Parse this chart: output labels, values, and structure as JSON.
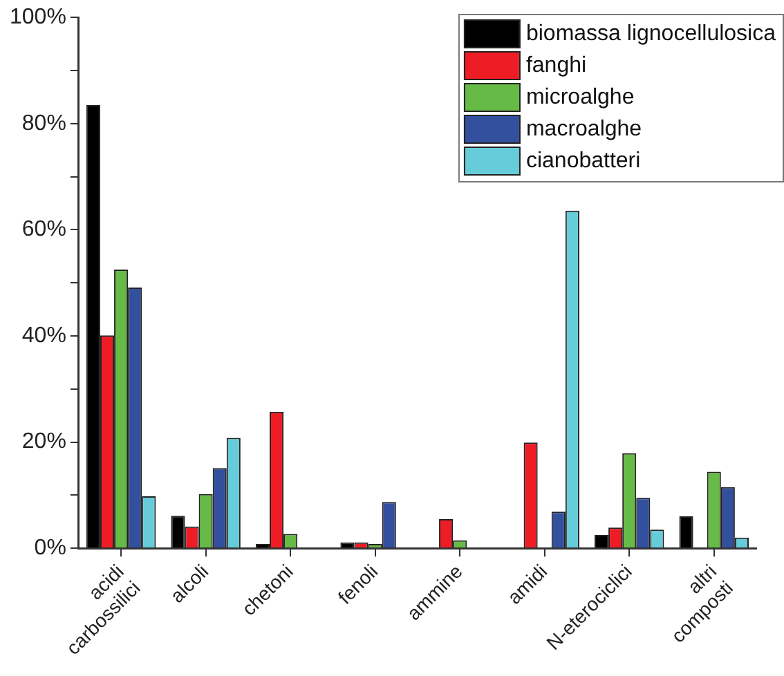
{
  "chart_data": {
    "type": "bar",
    "categories": [
      "acidi carbossilici",
      "alcoli",
      "chetoni",
      "fenoli",
      "ammine",
      "amidi",
      "N-eterociclici",
      "altri composti"
    ],
    "series": [
      {
        "name": "biomassa lignocellulosica",
        "color": "#000000",
        "values": [
          83.5,
          6.1,
          0.8,
          1.1,
          null,
          null,
          2.5,
          6.0
        ]
      },
      {
        "name": "fanghi",
        "color": "#ee1c24",
        "values": [
          40.1,
          4.1,
          25.7,
          1.1,
          5.5,
          19.9,
          3.9,
          null
        ]
      },
      {
        "name": "microalghe",
        "color": "#66bb46",
        "values": [
          52.5,
          10.2,
          2.7,
          0.8,
          1.5,
          null,
          17.9,
          14.4
        ]
      },
      {
        "name": "macroalghe",
        "color": "#33509f",
        "values": [
          49.1,
          15.1,
          null,
          8.7,
          null,
          6.9,
          9.5,
          11.5
        ]
      },
      {
        "name": "cianobatteri",
        "color": "#66ccd9",
        "values": [
          9.8,
          20.8,
          null,
          null,
          null,
          63.6,
          3.5,
          2.0
        ]
      }
    ],
    "ylim": [
      0,
      100
    ],
    "yticks": [
      {
        "value": 0,
        "label": "0%"
      },
      {
        "value": 10,
        "label": null
      },
      {
        "value": 20,
        "label": "20%"
      },
      {
        "value": 30,
        "label": null
      },
      {
        "value": 40,
        "label": "40%"
      },
      {
        "value": 50,
        "label": null
      },
      {
        "value": 60,
        "label": "60%"
      },
      {
        "value": 70,
        "label": null
      },
      {
        "value": 80,
        "label": "80%"
      },
      {
        "value": 90,
        "label": null
      },
      {
        "value": 100,
        "label": "100%"
      }
    ],
    "grid": false,
    "legend": "top right"
  }
}
